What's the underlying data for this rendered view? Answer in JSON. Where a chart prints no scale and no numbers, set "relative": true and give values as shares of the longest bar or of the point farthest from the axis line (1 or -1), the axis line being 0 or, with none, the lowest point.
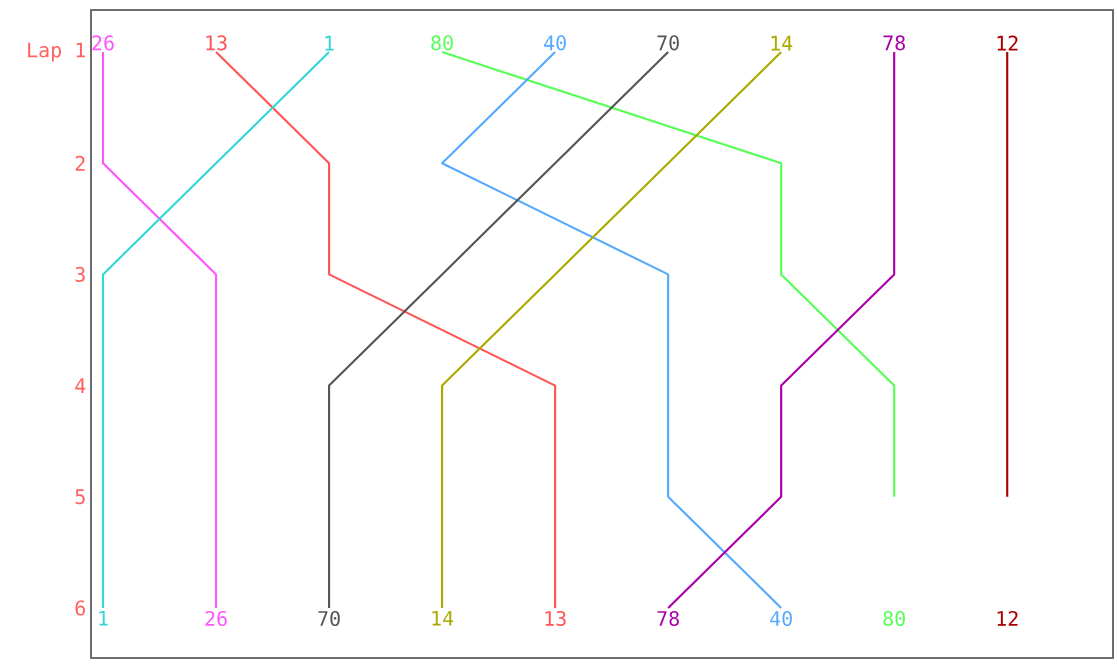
{
  "chart_data": {
    "type": "line",
    "orientation": "horizontal",
    "relative": true,
    "categories": [
      "Lap 1",
      "2",
      "3",
      "4",
      "5",
      "6"
    ],
    "marker": "none",
    "line_style": "solid",
    "grid": false,
    "legend": false,
    "series": [
      {
        "name": "26",
        "color": "#ff55ff",
        "values": [
          0,
          0,
          0.125,
          0.125,
          0.125,
          0.125
        ]
      },
      {
        "name": "13",
        "color": "#ff5555",
        "values": [
          0.125,
          0.25,
          0.25,
          0.5,
          0.5,
          0.5
        ]
      },
      {
        "name": "1",
        "color": "#33d6d6",
        "values": [
          0.25,
          0.125,
          0,
          0,
          0,
          0
        ]
      },
      {
        "name": "80",
        "color": "#55ff55",
        "values": [
          0.375,
          0.75,
          0.75,
          0.875,
          0.875,
          null
        ]
      },
      {
        "name": "40",
        "color": "#55aaff",
        "values": [
          0.5,
          0.375,
          0.625,
          0.625,
          0.625,
          0.75
        ]
      },
      {
        "name": "70",
        "color": "#555555",
        "values": [
          0.625,
          0.5,
          0.375,
          0.25,
          0.25,
          0.25
        ]
      },
      {
        "name": "14",
        "color": "#aaaa00",
        "values": [
          0.75,
          0.625,
          0.5,
          0.375,
          0.375,
          0.375
        ]
      },
      {
        "name": "78",
        "color": "#aa00aa",
        "values": [
          0.875,
          0.875,
          0.875,
          0.75,
          0.75,
          0.625
        ]
      },
      {
        "name": "12",
        "color": "#aa0000",
        "values": [
          1,
          1,
          1,
          1,
          1,
          null
        ]
      }
    ]
  }
}
